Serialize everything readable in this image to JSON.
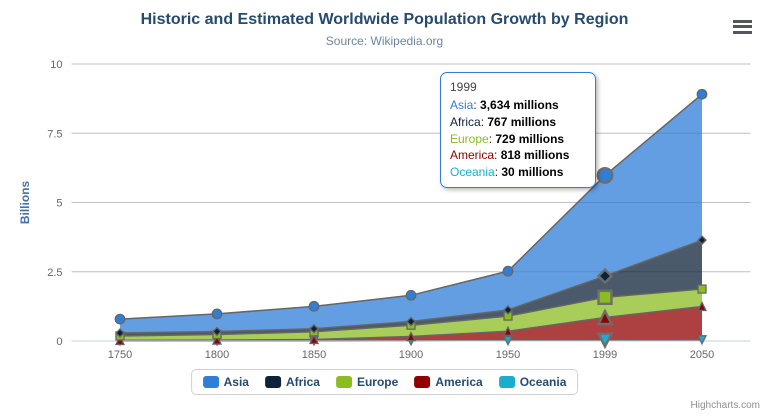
{
  "chart": {
    "title": "Historic and Estimated Worldwide Population Growth by Region",
    "subtitle": "Source: Wikipedia.org",
    "credits": "Highcharts.com"
  },
  "chart_data": {
    "type": "area",
    "stacking": "normal",
    "title": "Historic and Estimated Worldwide Population Growth by Region",
    "subtitle": "Source: Wikipedia.org",
    "categories": [
      "1750",
      "1800",
      "1850",
      "1900",
      "1950",
      "1999",
      "2050"
    ],
    "xlabel": "",
    "ylabel": "Billions",
    "unit": "millions",
    "yticks": [
      0,
      2.5,
      5,
      7.5,
      10
    ],
    "ylim": [
      0,
      10
    ],
    "grid": true,
    "legend_position": "bottom",
    "hover_index": 5,
    "series": [
      {
        "name": "Asia",
        "color": "#2f7ed8",
        "marker": "circle",
        "values": [
          502,
          635,
          809,
          947,
          1402,
          3634,
          5268
        ]
      },
      {
        "name": "Africa",
        "color": "#0d233a",
        "marker": "diamond",
        "values": [
          106,
          107,
          111,
          133,
          221,
          767,
          1766
        ]
      },
      {
        "name": "Europe",
        "color": "#8bbc21",
        "marker": "square",
        "values": [
          163,
          203,
          276,
          408,
          547,
          729,
          628
        ]
      },
      {
        "name": "America",
        "color": "#910000",
        "marker": "triangle",
        "values": [
          18,
          31,
          54,
          156,
          339,
          818,
          1201
        ]
      },
      {
        "name": "Oceania",
        "color": "#1aadce",
        "marker": "triangle-down",
        "values": [
          2,
          2,
          2,
          6,
          13,
          30,
          46
        ]
      }
    ]
  },
  "tooltip": {
    "header": "1999",
    "rows": [
      {
        "name": "Asia",
        "color": "#2f7ed8",
        "value": "3,634 millions"
      },
      {
        "name": "Africa",
        "color": "#0d233a",
        "value": "767 millions"
      },
      {
        "name": "Europe",
        "color": "#8bbc21",
        "value": "729 millions"
      },
      {
        "name": "America",
        "color": "#910000",
        "value": "818 millions"
      },
      {
        "name": "Oceania",
        "color": "#1aadce",
        "value": "30 millions"
      }
    ]
  },
  "icons": {
    "menu": "hamburger-menu-icon"
  },
  "colors": {
    "title_text": "#274b6d",
    "subtitle_text": "#6d869f",
    "axis_label": "#666666",
    "y_title": "#4572a7",
    "grid_line": "#c0c0c0",
    "axis_line": "#c0d0e0",
    "series_outline": "#666666",
    "tooltip_border": "#2f7ed8",
    "credits_text": "#909090"
  }
}
